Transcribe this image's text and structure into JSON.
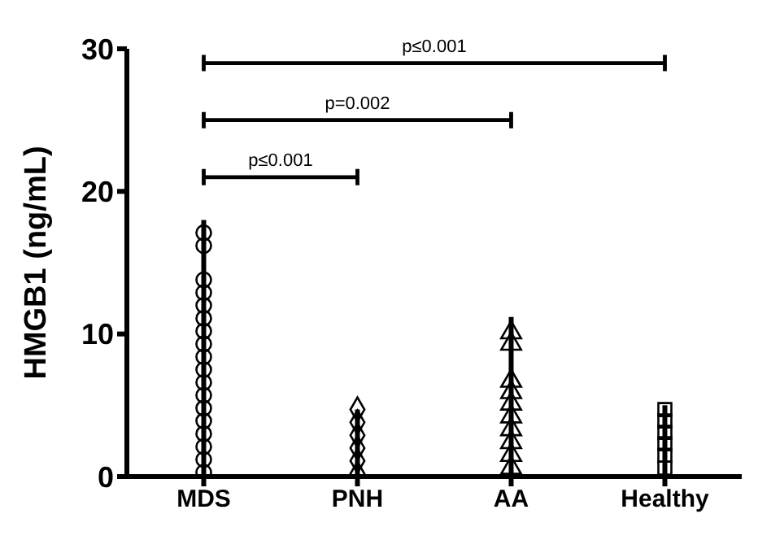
{
  "chart_data": {
    "type": "scatter",
    "categories": [
      "MDS",
      "PNH",
      "AA",
      "Healthy"
    ],
    "ylabel": "HMGB1 (ng/mL)",
    "ylim": [
      0,
      30
    ],
    "yticks": [
      0,
      10,
      20,
      30
    ],
    "grid": false,
    "legend": false,
    "annotations": [
      "p≤0.001",
      "p=0.002",
      "p≤0.001"
    ],
    "series": [
      {
        "color": "#000000",
        "marker": "circle",
        "x": [
          "MDS",
          "MDS",
          "MDS",
          "MDS",
          "MDS",
          "MDS",
          "MDS",
          "MDS",
          "MDS",
          "MDS",
          "MDS",
          "MDS",
          "MDS",
          "MDS",
          "MDS",
          "MDS",
          "MDS",
          "MDS"
        ],
        "values": [
          0.3,
          1.2,
          2.1,
          3,
          3.9,
          4.8,
          5.7,
          6.6,
          7.5,
          8.4,
          9.3,
          10.2,
          11.1,
          12,
          12.9,
          13.8,
          16.2,
          17.1
        ]
      },
      {
        "color": "#000000",
        "marker": "diamond",
        "x": [
          "PNH",
          "PNH",
          "PNH",
          "PNH",
          "PNH",
          "PNH"
        ],
        "values": [
          0.2,
          1.1,
          2,
          2.9,
          3.8,
          4.7
        ]
      },
      {
        "color": "#000000",
        "marker": "triangle",
        "x": [
          "AA",
          "AA",
          "AA",
          "AA",
          "AA",
          "AA",
          "AA",
          "AA",
          "AA",
          "AA"
        ],
        "values": [
          0.6,
          1.5,
          2.4,
          3.3,
          4.2,
          5.1,
          5.9,
          6.7,
          9.3,
          10.1
        ]
      },
      {
        "color": "#000000",
        "marker": "square",
        "x": [
          "Healthy",
          "Healthy",
          "Healthy",
          "Healthy",
          "Healthy",
          "Healthy"
        ],
        "values": [
          0.6,
          1.5,
          2.3,
          3.1,
          3.9,
          4.7
        ]
      },
      {
        "type": "line",
        "color": "#000000",
        "marker": "none",
        "x": [
          "MDS",
          "MDS"
        ],
        "values": [
          0,
          18
        ]
      },
      {
        "type": "line",
        "color": "#000000",
        "marker": "none",
        "x": [
          "PNH",
          "PNH"
        ],
        "values": [
          0,
          4.7
        ]
      },
      {
        "type": "line",
        "color": "#000000",
        "marker": "none",
        "x": [
          "AA",
          "AA"
        ],
        "values": [
          0,
          11.2
        ]
      },
      {
        "type": "line",
        "color": "#000000",
        "marker": "none",
        "x": [
          "Healthy",
          "Healthy"
        ],
        "values": [
          0,
          5
        ]
      }
    ]
  }
}
